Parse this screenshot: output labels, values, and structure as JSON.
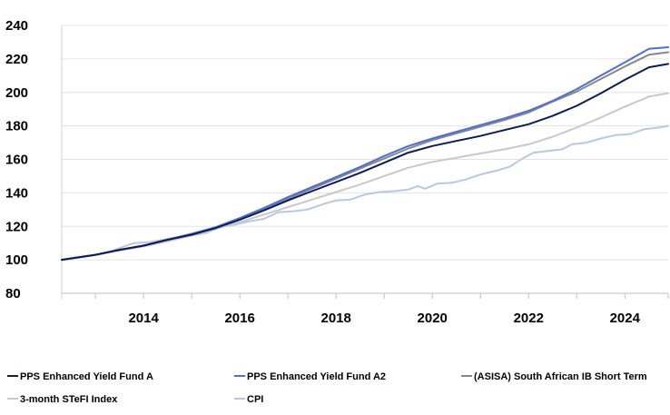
{
  "chart_data": {
    "type": "line",
    "title": "",
    "xlabel": "",
    "ylabel": "",
    "xlim": [
      2012.3,
      2024.9
    ],
    "ylim": [
      80,
      240
    ],
    "y_ticks": [
      80,
      100,
      120,
      140,
      160,
      180,
      200,
      220,
      240
    ],
    "x_ticks": [
      2014,
      2016,
      2018,
      2020,
      2022,
      2024
    ],
    "grid": "horizontal",
    "legend_position": "bottom",
    "series": [
      {
        "name": "PPS Enhanced Yield Fund A",
        "color": "#0d1c55",
        "width": 2,
        "points": [
          [
            2012.3,
            100
          ],
          [
            2013,
            103
          ],
          [
            2013.5,
            106
          ],
          [
            2014,
            108.5
          ],
          [
            2014.5,
            112
          ],
          [
            2015,
            115
          ],
          [
            2015.5,
            119
          ],
          [
            2016,
            124
          ],
          [
            2016.5,
            129.5
          ],
          [
            2017,
            135.5
          ],
          [
            2017.5,
            141
          ],
          [
            2018,
            146.5
          ],
          [
            2018.5,
            152
          ],
          [
            2019,
            158
          ],
          [
            2019.5,
            164
          ],
          [
            2020,
            168
          ],
          [
            2020.5,
            171
          ],
          [
            2021,
            174
          ],
          [
            2021.5,
            177.5
          ],
          [
            2022,
            181
          ],
          [
            2022.5,
            186
          ],
          [
            2023,
            192
          ],
          [
            2023.5,
            199.5
          ],
          [
            2024,
            207.5
          ],
          [
            2024.5,
            215
          ],
          [
            2024.9,
            217
          ]
        ]
      },
      {
        "name": "PPS Enhanced Yield Fund A2",
        "color": "#4a6fdc",
        "width": 2,
        "points": [
          [
            2012.3,
            100
          ],
          [
            2013,
            103
          ],
          [
            2013.5,
            106
          ],
          [
            2014,
            108.5
          ],
          [
            2014.5,
            112
          ],
          [
            2015,
            115.5
          ],
          [
            2015.5,
            119.5
          ],
          [
            2016,
            125
          ],
          [
            2016.5,
            131
          ],
          [
            2017,
            137.5
          ],
          [
            2017.5,
            143.5
          ],
          [
            2018,
            149.5
          ],
          [
            2018.5,
            155.5
          ],
          [
            2019,
            162
          ],
          [
            2019.5,
            168
          ],
          [
            2020,
            172.5
          ],
          [
            2020.5,
            176.5
          ],
          [
            2021,
            180.5
          ],
          [
            2021.5,
            184.5
          ],
          [
            2022,
            189
          ],
          [
            2022.5,
            195
          ],
          [
            2023,
            202
          ],
          [
            2023.5,
            210
          ],
          [
            2024,
            218
          ],
          [
            2024.5,
            226
          ],
          [
            2024.9,
            227
          ]
        ]
      },
      {
        "name": "(ASISA) South African IB Short Term",
        "color": "#888888",
        "width": 2,
        "points": [
          [
            2012.3,
            100
          ],
          [
            2013,
            103
          ],
          [
            2013.5,
            106
          ],
          [
            2014,
            108.5
          ],
          [
            2014.5,
            112
          ],
          [
            2015,
            115.5
          ],
          [
            2015.5,
            119.5
          ],
          [
            2016,
            124.5
          ],
          [
            2016.5,
            130.5
          ],
          [
            2017,
            136.5
          ],
          [
            2017.5,
            142.5
          ],
          [
            2018,
            148.5
          ],
          [
            2018.5,
            154.5
          ],
          [
            2019,
            160.5
          ],
          [
            2019.5,
            166.5
          ],
          [
            2020,
            171.5
          ],
          [
            2020.5,
            175.5
          ],
          [
            2021,
            179.5
          ],
          [
            2021.5,
            183.5
          ],
          [
            2022,
            188
          ],
          [
            2022.5,
            194.5
          ],
          [
            2023,
            200.5
          ],
          [
            2023.5,
            208
          ],
          [
            2024,
            215.5
          ],
          [
            2024.5,
            222.5
          ],
          [
            2024.9,
            224
          ]
        ]
      },
      {
        "name": "3-month STeFI Index",
        "color": "#c8c8c8",
        "width": 2,
        "points": [
          [
            2012.3,
            100
          ],
          [
            2013,
            103
          ],
          [
            2013.5,
            105.5
          ],
          [
            2014,
            108
          ],
          [
            2014.5,
            111
          ],
          [
            2015,
            114.5
          ],
          [
            2015.5,
            118.5
          ],
          [
            2016,
            122.5
          ],
          [
            2016.5,
            127
          ],
          [
            2017,
            131.5
          ],
          [
            2017.5,
            136
          ],
          [
            2018,
            140.5
          ],
          [
            2018.5,
            145
          ],
          [
            2019,
            150
          ],
          [
            2019.5,
            155
          ],
          [
            2020,
            158.5
          ],
          [
            2020.5,
            161
          ],
          [
            2021,
            163.5
          ],
          [
            2021.5,
            166
          ],
          [
            2022,
            169
          ],
          [
            2022.5,
            173.5
          ],
          [
            2023,
            179
          ],
          [
            2023.5,
            185
          ],
          [
            2024,
            191.5
          ],
          [
            2024.5,
            197.5
          ],
          [
            2024.9,
            199.5
          ]
        ]
      },
      {
        "name": "CPI",
        "color": "#b7c9e2",
        "width": 2,
        "points": [
          [
            2012.3,
            100
          ],
          [
            2012.6,
            101.5
          ],
          [
            2012.9,
            102.5
          ],
          [
            2013.2,
            104
          ],
          [
            2013.5,
            107
          ],
          [
            2013.8,
            110
          ],
          [
            2014.1,
            110.5
          ],
          [
            2014.4,
            112
          ],
          [
            2014.7,
            113.5
          ],
          [
            2015,
            114.5
          ],
          [
            2015.3,
            116
          ],
          [
            2015.6,
            119.5
          ],
          [
            2015.9,
            121
          ],
          [
            2016.2,
            123
          ],
          [
            2016.5,
            124.5
          ],
          [
            2016.8,
            128.5
          ],
          [
            2017.1,
            129
          ],
          [
            2017.4,
            130
          ],
          [
            2017.7,
            133
          ],
          [
            2018,
            135.5
          ],
          [
            2018.3,
            136
          ],
          [
            2018.6,
            139
          ],
          [
            2018.9,
            140.5
          ],
          [
            2019.2,
            141
          ],
          [
            2019.5,
            142
          ],
          [
            2019.7,
            144
          ],
          [
            2019.85,
            142.5
          ],
          [
            2020.1,
            145.5
          ],
          [
            2020.4,
            146
          ],
          [
            2020.7,
            148
          ],
          [
            2021,
            151
          ],
          [
            2021.3,
            153
          ],
          [
            2021.6,
            155.5
          ],
          [
            2021.9,
            161
          ],
          [
            2022.1,
            164
          ],
          [
            2022.4,
            165
          ],
          [
            2022.7,
            166
          ],
          [
            2022.9,
            169
          ],
          [
            2023.2,
            170
          ],
          [
            2023.5,
            172.5
          ],
          [
            2023.8,
            174.5
          ],
          [
            2024.1,
            175
          ],
          [
            2024.4,
            178
          ],
          [
            2024.7,
            179
          ],
          [
            2024.9,
            180
          ]
        ]
      }
    ]
  }
}
